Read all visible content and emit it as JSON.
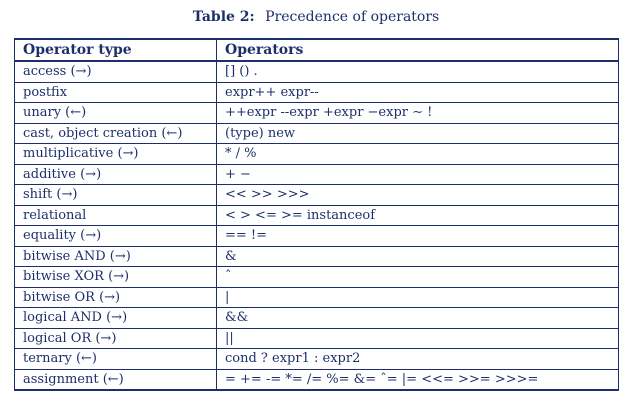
{
  "caption": {
    "label": "Table 2:",
    "title": "Precedence of operators"
  },
  "table": {
    "headers": [
      "Operator type",
      "Operators"
    ],
    "rows": [
      [
        "access (→)",
        "[] () ."
      ],
      [
        "postfix",
        "expr++ expr--"
      ],
      [
        "unary (←)",
        "++expr --expr +expr −expr ∼ !"
      ],
      [
        "cast, object creation (←)",
        "(type) new"
      ],
      [
        "multiplicative (→)",
        "* / %"
      ],
      [
        "additive (→)",
        "+ −"
      ],
      [
        "shift (→)",
        "<< >> >>>"
      ],
      [
        "relational",
        "< > <= >= instanceof"
      ],
      [
        "equality (→)",
        "== !="
      ],
      [
        "bitwise AND (→)",
        "&"
      ],
      [
        "bitwise XOR (→)",
        "ˆ"
      ],
      [
        "bitwise OR (→)",
        "|"
      ],
      [
        "logical AND (→)",
        "&&"
      ],
      [
        "logical OR (→)",
        "||"
      ],
      [
        "ternary (←)",
        "cond ? expr1 : expr2"
      ],
      [
        "assignment (←)",
        "= += -= *= /= %= &= ˆ= |= <<= >>= >>>="
      ]
    ]
  }
}
